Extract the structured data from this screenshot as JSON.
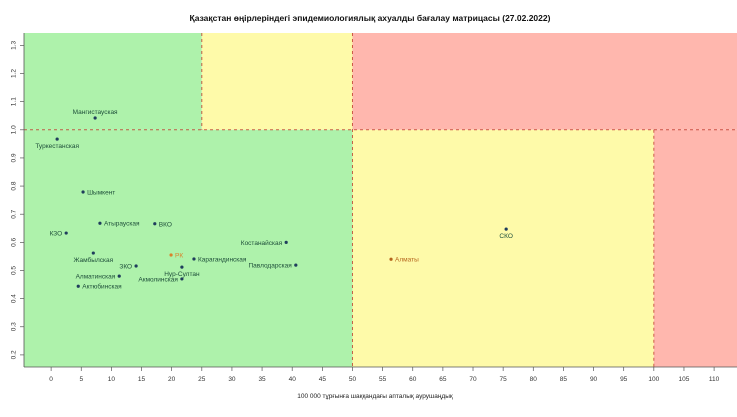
{
  "chart_data": {
    "type": "scatter",
    "title": "Қазақстан өңірлеріндегі эпидемиологиялық ахуалды бағалау матрицасы  (27.02.2022)",
    "xlabel": "100 000 тұрғынға шаққандағы апталық аурушаңдық",
    "ylabel": "",
    "xlim": [
      -4.5,
      113.8
    ],
    "ylim": [
      0.157,
      1.344
    ],
    "xticks": [
      0,
      5,
      10,
      15,
      20,
      25,
      30,
      35,
      40,
      45,
      50,
      55,
      60,
      65,
      70,
      75,
      80,
      85,
      90,
      95,
      100,
      105,
      110
    ],
    "yticks": [
      0.2,
      0.3,
      0.4,
      0.5,
      0.6,
      0.7,
      0.8,
      0.9,
      1.0,
      1.1,
      1.2,
      1.3
    ],
    "zones": [
      {
        "x0": -4.5,
        "x1": 25,
        "y0": 1.0,
        "y1": 1.344,
        "color": "#aef2ab"
      },
      {
        "x0": 25,
        "x1": 50,
        "y0": 1.0,
        "y1": 1.344,
        "color": "#fefaa9"
      },
      {
        "x0": 50,
        "x1": 113.8,
        "y0": 1.0,
        "y1": 1.344,
        "color": "#ffb7ae"
      },
      {
        "x0": -4.5,
        "x1": 50,
        "y0": 0.157,
        "y1": 1.0,
        "color": "#aef2ab"
      },
      {
        "x0": 50,
        "x1": 100,
        "y0": 0.157,
        "y1": 1.0,
        "color": "#fefaa9"
      },
      {
        "x0": 100,
        "x1": 113.8,
        "y0": 0.157,
        "y1": 1.0,
        "color": "#ffb7ae"
      }
    ],
    "points": [
      {
        "label": "Мангистауская",
        "x": 7.3,
        "y": 1.042,
        "pos": "top"
      },
      {
        "label": "Туркестанская",
        "x": 1.0,
        "y": 0.967,
        "pos": "bottom"
      },
      {
        "label": "Шымкент",
        "x": 5.3,
        "y": 0.779,
        "pos": "right"
      },
      {
        "label": "Атырауская",
        "x": 8.1,
        "y": 0.668,
        "pos": "right"
      },
      {
        "label": "ВКО",
        "x": 17.2,
        "y": 0.666,
        "pos": "right"
      },
      {
        "label": "КЗО",
        "x": 2.5,
        "y": 0.633,
        "pos": "left"
      },
      {
        "label": "Жамбылская",
        "x": 7.0,
        "y": 0.562,
        "pos": "bottom"
      },
      {
        "label": "РК",
        "x": 19.9,
        "y": 0.555,
        "pos": "right",
        "color": "#d9822b"
      },
      {
        "label": "Карагандинская",
        "x": 23.7,
        "y": 0.541,
        "pos": "right"
      },
      {
        "label": "ЗКО",
        "x": 14.1,
        "y": 0.516,
        "pos": "left"
      },
      {
        "label": "Нур-Султан",
        "x": 21.7,
        "y": 0.512,
        "pos": "bottom"
      },
      {
        "label": "Акмолинская",
        "x": 21.7,
        "y": 0.47,
        "pos": "left"
      },
      {
        "label": "Алматинская",
        "x": 11.3,
        "y": 0.48,
        "pos": "left"
      },
      {
        "label": "Актюбинская",
        "x": 4.5,
        "y": 0.444,
        "pos": "right"
      },
      {
        "label": "Костанайская",
        "x": 39.0,
        "y": 0.6,
        "pos": "left"
      },
      {
        "label": "Павлодарская",
        "x": 40.6,
        "y": 0.519,
        "pos": "left"
      },
      {
        "label": "Алматы",
        "x": 56.4,
        "y": 0.54,
        "pos": "right",
        "color": "#b5651d"
      },
      {
        "label": "СКО",
        "x": 75.5,
        "y": 0.647,
        "pos": "bottom"
      }
    ],
    "thresholds": {
      "x": [
        25,
        50,
        100
      ],
      "y": [
        1.0
      ]
    },
    "grid": false,
    "legend": "none"
  }
}
